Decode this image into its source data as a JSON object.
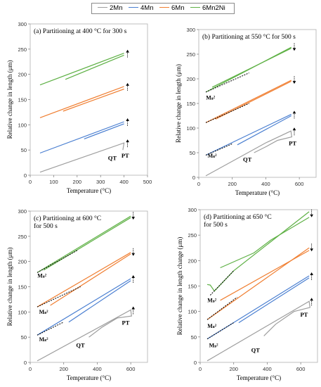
{
  "legend": {
    "items": [
      {
        "name": "2Mn",
        "color": "#9e9e9e"
      },
      {
        "name": "4Mn",
        "color": "#4a7fd1"
      },
      {
        "name": "6Mn",
        "color": "#f07f32"
      },
      {
        "name": "6Mn2Ni",
        "color": "#5fb146"
      }
    ]
  },
  "chart_data": [
    {
      "type": "line",
      "panel_title": [
        "(a) Partitioning at 400 °C for 300 s"
      ],
      "xlabel": "Temperature (°C)",
      "ylabel": "Relative change in length (μm)",
      "xlim": [
        0,
        500
      ],
      "ylim": [
        0,
        300
      ],
      "xticks": [
        0,
        100,
        200,
        300,
        400,
        500
      ],
      "yticks": [
        0,
        50,
        100,
        150,
        200,
        250,
        300
      ],
      "series": [
        {
          "name": "2Mn",
          "color_key": "2Mn",
          "paths": [
            [
              [
                42,
                6
              ],
              [
                400,
                64
              ],
              [
                395,
                50
              ]
            ]
          ]
        },
        {
          "name": "4Mn",
          "color_key": "4Mn",
          "paths": [
            [
              [
                42,
                44
              ],
              [
                400,
                106
              ]
            ],
            [
              [
                230,
                72
              ],
              [
                400,
                102
              ]
            ]
          ]
        },
        {
          "name": "6Mn",
          "color_key": "6Mn",
          "paths": [
            [
              [
                42,
                114
              ],
              [
                400,
                176
              ]
            ],
            [
              [
                140,
                127
              ],
              [
                400,
                171
              ]
            ]
          ]
        },
        {
          "name": "6Mn2Ni",
          "color_key": "6Mn2Ni",
          "paths": [
            [
              [
                42,
                179
              ],
              [
                400,
                242
              ]
            ],
            [
              [
                150,
                190
              ],
              [
                400,
                238
              ]
            ]
          ]
        }
      ],
      "markers": [
        {
          "at": [
            415,
            64
          ],
          "dir": "up"
        },
        {
          "at": [
            415,
            106
          ],
          "dir": "up"
        },
        {
          "at": [
            415,
            176
          ],
          "dir": "up"
        },
        {
          "at": [
            415,
            242
          ],
          "dir": "up"
        }
      ],
      "annotations": [
        {
          "text": "QT",
          "at": [
            350,
            30
          ]
        },
        {
          "text": "PT",
          "at": [
            405,
            35
          ]
        }
      ],
      "ms_labels": []
    },
    {
      "type": "line",
      "panel_title": [
        "(b) Partitioning at 550 °C for 500 s"
      ],
      "xlabel": "Temperature (°C)",
      "ylabel": "Relative change in length (μm)",
      "xlim": [
        0,
        700
      ],
      "ylim": [
        0,
        300
      ],
      "xticks": [
        0,
        200,
        400,
        600
      ],
      "yticks": [
        0,
        50,
        100,
        150,
        200,
        250,
        300
      ],
      "series": [
        {
          "name": "2Mn",
          "color_key": "2Mn",
          "paths": [
            [
              [
                42,
                3
              ],
              [
                400,
                70
              ],
              [
                550,
                94
              ],
              [
                555,
                82
              ],
              [
                470,
                75
              ],
              [
                400,
                62
              ],
              [
                330,
                50
              ]
            ]
          ]
        },
        {
          "name": "4Mn",
          "color_key": "4Mn",
          "paths": [
            [
              [
                42,
                45
              ],
              [
                552,
                128
              ]
            ],
            [
              [
                230,
                66
              ],
              [
                552,
                125
              ]
            ]
          ]
        },
        {
          "name": "6Mn",
          "color_key": "6Mn",
          "paths": [
            [
              [
                42,
                111
              ],
              [
                552,
                197
              ]
            ],
            [
              [
                100,
                118
              ],
              [
                552,
                195
              ]
            ]
          ]
        },
        {
          "name": "6Mn2Ni",
          "color_key": "6Mn2Ni",
          "paths": [
            [
              [
                42,
                173
              ],
              [
                552,
                264
              ]
            ],
            [
              [
                80,
                183
              ],
              [
                552,
                262
              ]
            ]
          ]
        }
      ],
      "dashed": [
        [
          [
            42,
            173
          ],
          [
            300,
            212
          ]
        ],
        [
          [
            42,
            111
          ],
          [
            300,
            150
          ]
        ],
        [
          [
            42,
            45
          ],
          [
            200,
            68
          ]
        ]
      ],
      "markers": [
        {
          "at": [
            570,
            94
          ],
          "dir": "up"
        },
        {
          "at": [
            570,
            128
          ],
          "dir": "up"
        },
        {
          "at": [
            570,
            197
          ],
          "dir": "down"
        },
        {
          "at": [
            570,
            264
          ],
          "dir": "down"
        }
      ],
      "annotations": [
        {
          "text": "PT",
          "at": [
            560,
            65
          ]
        },
        {
          "text": "QT",
          "at": [
            290,
            32
          ]
        }
      ],
      "ms_labels": [
        {
          "text": "Mₛ²",
          "at": [
            70,
            158
          ]
        },
        {
          "text": "Mₛ²",
          "at": [
            80,
            40
          ]
        }
      ]
    },
    {
      "type": "line",
      "panel_title": [
        "(c) Partitioning at 600 °C",
        "for 500 s"
      ],
      "xlabel": "Temperature (°C)",
      "ylabel": "Relative change in length (μm)",
      "xlim": [
        0,
        700
      ],
      "ylim": [
        0,
        300
      ],
      "xticks": [
        0,
        200,
        400,
        600
      ],
      "yticks": [
        0,
        50,
        100,
        150,
        200,
        250,
        300
      ],
      "series": [
        {
          "name": "2Mn",
          "color_key": "2Mn",
          "paths": [
            [
              [
                42,
                3
              ],
              [
                600,
                104
              ],
              [
                605,
                92
              ],
              [
                520,
                88
              ],
              [
                430,
                70
              ],
              [
                350,
                50
              ]
            ]
          ]
        },
        {
          "name": "4Mn",
          "color_key": "4Mn",
          "paths": [
            [
              [
                42,
                54
              ],
              [
                600,
                166
              ]
            ],
            [
              [
                230,
                80
              ],
              [
                600,
                162
              ]
            ]
          ]
        },
        {
          "name": "6Mn",
          "color_key": "6Mn",
          "paths": [
            [
              [
                42,
                110
              ],
              [
                600,
                218
              ]
            ],
            [
              [
                120,
                113
              ],
              [
                600,
                215
              ]
            ]
          ]
        },
        {
          "name": "6Mn2Ni",
          "color_key": "6Mn2Ni",
          "paths": [
            [
              [
                42,
                178
              ],
              [
                600,
                290
              ]
            ],
            [
              [
                80,
                183
              ],
              [
                600,
                287
              ]
            ]
          ]
        }
      ],
      "dashed": [
        [
          [
            42,
            178
          ],
          [
            280,
            222
          ]
        ],
        [
          [
            42,
            110
          ],
          [
            300,
            150
          ]
        ],
        [
          [
            42,
            54
          ],
          [
            200,
            80
          ]
        ]
      ],
      "markers": [
        {
          "at": [
            615,
            104
          ],
          "dir": "up"
        },
        {
          "at": [
            615,
            166
          ],
          "dir": "up"
        },
        {
          "at": [
            615,
            218
          ],
          "dir": "down"
        },
        {
          "at": [
            615,
            290
          ],
          "dir": "down"
        }
      ],
      "annotations": [
        {
          "text": "PT",
          "at": [
            570,
            75
          ]
        },
        {
          "text": "QT",
          "at": [
            300,
            30
          ]
        }
      ],
      "ms_labels": [
        {
          "text": "Mₛ²",
          "at": [
            70,
            168
          ]
        },
        {
          "text": "Mₛ²",
          "at": [
            80,
            96
          ]
        },
        {
          "text": "Mₛ²",
          "at": [
            80,
            42
          ]
        }
      ]
    },
    {
      "type": "line",
      "panel_title": [
        "(d) Partitioning at 650 °C",
        "for 500 s"
      ],
      "xlabel": "Temperature (°C)",
      "ylabel": "Relative change in length change (μm)",
      "xlim": [
        0,
        700
      ],
      "ylim": [
        0,
        300
      ],
      "xticks": [
        0,
        200,
        400,
        600
      ],
      "yticks": [
        0,
        50,
        100,
        150,
        200,
        250,
        300
      ],
      "series": [
        {
          "name": "2Mn",
          "color_key": "2Mn",
          "paths": [
            [
              [
                42,
                3
              ],
              [
                650,
                120
              ],
              [
                655,
                108
              ],
              [
                560,
                100
              ],
              [
                450,
                75
              ],
              [
                380,
                52
              ]
            ]
          ]
        },
        {
          "name": "4Mn",
          "color_key": "4Mn",
          "paths": [
            [
              [
                42,
                46
              ],
              [
                650,
                170
              ]
            ],
            [
              [
                230,
                78
              ],
              [
                650,
                166
              ]
            ]
          ]
        },
        {
          "name": "6Mn",
          "color_key": "6Mn",
          "paths": [
            [
              [
                42,
                84
              ],
              [
                650,
                225
              ]
            ],
            [
              [
                120,
                122
              ],
              [
                650,
                220
              ]
            ]
          ]
        },
        {
          "name": "6Mn2Ni",
          "color_key": "6Mn2Ni",
          "paths": [
            [
              [
                42,
                153
              ],
              [
                60,
                152
              ],
              [
                85,
                140
              ],
              [
                200,
                180
              ],
              [
                650,
                296
              ]
            ],
            [
              [
                120,
                186
              ],
              [
                320,
                215
              ],
              [
                420,
                240
              ],
              [
                650,
                285
              ]
            ]
          ]
        }
      ],
      "dashed": [
        [
          [
            60,
            132
          ],
          [
            200,
            180
          ]
        ],
        [
          [
            42,
            84
          ],
          [
            220,
            128
          ]
        ],
        [
          [
            42,
            46
          ],
          [
            200,
            78
          ]
        ]
      ],
      "markers": [
        {
          "at": [
            665,
            120
          ],
          "dir": "up"
        },
        {
          "at": [
            665,
            170
          ],
          "dir": "up"
        },
        {
          "at": [
            665,
            225
          ],
          "dir": "down"
        },
        {
          "at": [
            665,
            292
          ],
          "dir": "down"
        }
      ],
      "annotations": [
        {
          "text": "PT",
          "at": [
            620,
            90
          ]
        },
        {
          "text": "QT",
          "at": [
            330,
            20
          ]
        }
      ],
      "ms_labels": [
        {
          "text": "Mₛ²",
          "at": [
            70,
            118
          ]
        },
        {
          "text": "Mₛ²",
          "at": [
            70,
            68
          ]
        },
        {
          "text": "Mₛ²",
          "at": [
            80,
            30
          ]
        }
      ]
    }
  ]
}
